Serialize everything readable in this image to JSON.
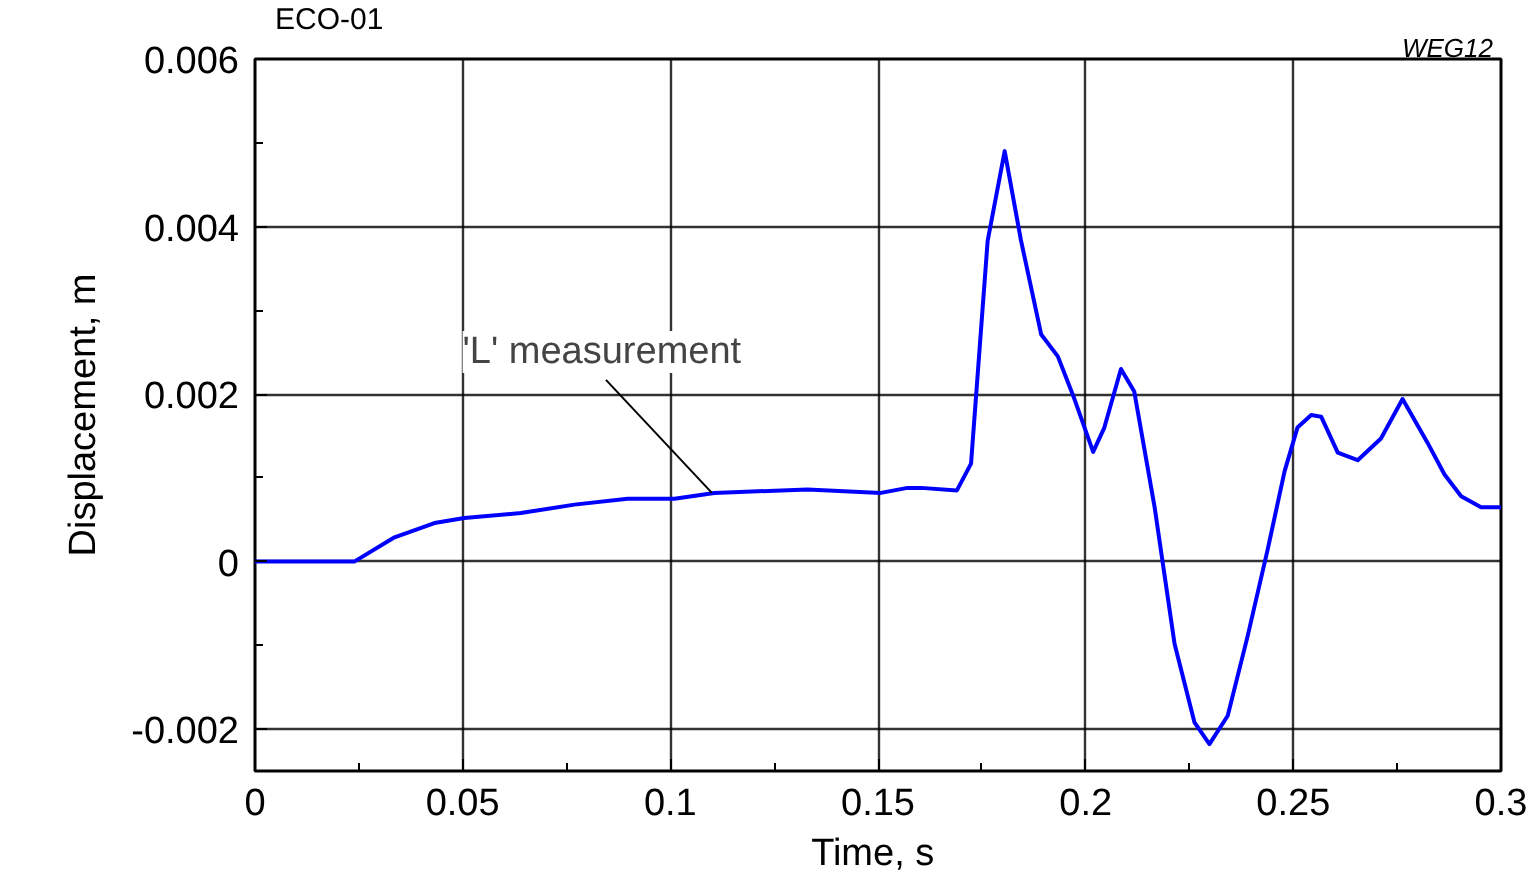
{
  "chart_data": {
    "type": "line",
    "title": "ECO-01",
    "xlabel": "Time,  s",
    "ylabel": "Displacement, m",
    "annotations": [
      "WEG12",
      {
        "text": "'L' measurement",
        "x": 0.11,
        "y": 0.00082
      }
    ],
    "xlim": [
      0,
      0.3
    ],
    "ylim": [
      -0.0025,
      0.006
    ],
    "xticks": [
      {
        "value": 0,
        "label": "0"
      },
      0.05,
      {
        "value": 0.1,
        "label": "0.1"
      },
      0.15,
      {
        "value": 0.2,
        "label": "0.2"
      },
      0.25,
      {
        "value": 0.3,
        "label": "0.3"
      }
    ],
    "yticks": [
      -0.002,
      {
        "value": 0,
        "label": "0"
      },
      0.002,
      0.004,
      0.006
    ],
    "grid": true,
    "marker": "none",
    "line_style": "solid",
    "series": [
      {
        "color": "#0000ff",
        "x": [
          0,
          0.0239,
          0.0336,
          0.0432,
          0.0504,
          0.064,
          0.0769,
          0.0897,
          0.101,
          0.1106,
          0.133,
          0.1507,
          0.1571,
          0.1604,
          0.169,
          0.1724,
          0.1764,
          0.1805,
          0.1844,
          0.1893,
          0.1933,
          0.1973,
          0.2018,
          0.2045,
          0.2085,
          0.2117,
          0.2166,
          0.2214,
          0.2262,
          0.2298,
          0.2342,
          0.239,
          0.2438,
          0.2479,
          0.251,
          0.2543,
          0.2567,
          0.2607,
          0.2655,
          0.2711,
          0.2763,
          0.2823,
          0.2864,
          0.2904,
          0.2952,
          0.3
        ],
        "values": [
          0,
          0,
          0.00029,
          0.00046,
          0.00052,
          0.00058,
          0.00068,
          0.00075,
          0.00075,
          0.00082,
          0.00086,
          0.00082,
          0.00088,
          0.00088,
          0.00085,
          0.00117,
          0.00383,
          0.0049,
          0.00384,
          0.00271,
          0.00245,
          0.00194,
          0.00131,
          0.0016,
          0.0023,
          0.00203,
          0.00065,
          -0.00098,
          -0.00192,
          -0.00218,
          -0.00184,
          -0.00089,
          0.00014,
          0.00108,
          0.0016,
          0.00175,
          0.00173,
          0.0013,
          0.00121,
          0.00147,
          0.00194,
          0.00142,
          0.00104,
          0.00078,
          0.00065,
          0.00065
        ]
      }
    ]
  }
}
